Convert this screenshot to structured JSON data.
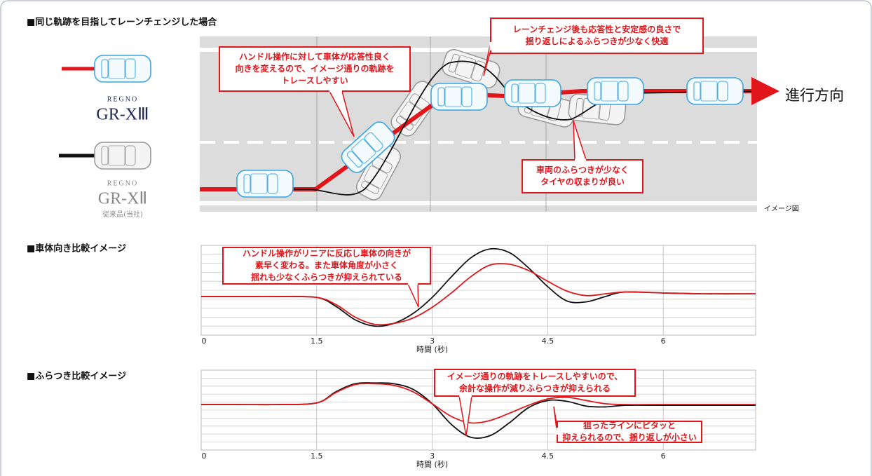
{
  "header": {
    "title": "■同じ軌跡を目指してレーンチェンジした場合"
  },
  "legend": [
    {
      "brand": "REGNO",
      "model": "GR-XⅢ"
    },
    {
      "brand": "REGNO",
      "model": "GR-XⅡ",
      "note": "従来品(当社)"
    }
  ],
  "diagram": {
    "callouts": [
      [
        "ハンドル操作に対して車体が応答性良く",
        "向きを変えるので、イメージ通りの軌跡を",
        "トレースしやすい"
      ],
      [
        "レーンチェンジ後も応答性と安定感の良さで",
        "揺り返しによるふらつきが少なく快適"
      ],
      [
        "車両のふらつきが少なく",
        "タイヤの収まりが良い"
      ]
    ],
    "direction": "進行方向",
    "caption": "イメージ図"
  },
  "chart_data": [
    {
      "type": "line",
      "title": "■車体向き比較イメージ",
      "x_label": "時間 (秒)",
      "xlim": [
        0,
        7.2
      ],
      "xticks": [
        0,
        1.5,
        3,
        4.5,
        6
      ],
      "ylim": [
        -5,
        5
      ],
      "grid": true,
      "x": [
        0,
        0.5,
        1,
        1.5,
        1.75,
        2,
        2.25,
        2.5,
        2.75,
        3,
        3.25,
        3.5,
        3.75,
        4,
        4.25,
        4.5,
        4.75,
        5,
        5.25,
        5.5,
        6,
        6.5,
        7.2
      ],
      "series": [
        {
          "color": "#111111",
          "values": [
            -0.7,
            -0.7,
            -0.7,
            -0.8,
            -1.8,
            -3.3,
            -4.0,
            -3.7,
            -2.6,
            -0.8,
            1.5,
            3.6,
            4.6,
            4.2,
            2.5,
            0.4,
            -1.2,
            -1.3,
            -0.7,
            -0.2,
            -0.3,
            -0.4,
            -0.4
          ]
        },
        {
          "color": "#e0161b",
          "values": [
            -0.7,
            -0.7,
            -0.7,
            -0.8,
            -1.6,
            -3.0,
            -3.8,
            -3.7,
            -3.1,
            -1.9,
            -0.3,
            1.5,
            2.8,
            2.9,
            2.2,
            1.0,
            -0.1,
            -0.6,
            -0.4,
            -0.2,
            -0.3,
            -0.4,
            -0.4
          ]
        }
      ],
      "annotations": [
        [
          "ハンドル操作がリニアに反応し車体の向きが",
          "素早く変わる。また車体角度が小さく",
          "揺れも少なくふらつきが抑えられている"
        ]
      ]
    },
    {
      "type": "line",
      "title": "■ふらつき比較イメージ",
      "x_label": "時間 (秒)",
      "xlim": [
        0,
        7.2
      ],
      "xticks": [
        0,
        1.5,
        3,
        4.5,
        6
      ],
      "ylim": [
        -5,
        5
      ],
      "grid": true,
      "x": [
        0,
        0.5,
        1,
        1.5,
        1.75,
        2,
        2.25,
        2.5,
        2.75,
        3,
        3.25,
        3.5,
        3.75,
        4,
        4.25,
        4.5,
        4.75,
        5,
        5.25,
        5.5,
        6,
        6.5,
        7.2
      ],
      "series": [
        {
          "color": "#111111",
          "values": [
            0.7,
            0.7,
            0.7,
            0.9,
            2.3,
            3.3,
            3.4,
            3.3,
            2.6,
            0.8,
            -1.8,
            -3.4,
            -3.2,
            -1.6,
            0.3,
            1.2,
            1.1,
            0.5,
            0.4,
            0.6,
            0.6,
            0.6,
            0.6
          ]
        },
        {
          "color": "#e0161b",
          "values": [
            0.7,
            0.7,
            0.7,
            0.9,
            2.2,
            3.2,
            3.3,
            3.1,
            2.3,
            0.8,
            -0.8,
            -1.6,
            -1.3,
            -0.4,
            0.6,
            1.4,
            1.6,
            1.2,
            0.8,
            0.7,
            0.7,
            0.7,
            0.7
          ]
        }
      ],
      "annotations": [
        [
          "イメージ通りの軌跡をトレースしやすいので、",
          "余計な操作が減りふらつきが抑えられる"
        ],
        [
          "狙ったラインにピタッと",
          "抑えられるので、揺り返しが小さい"
        ]
      ]
    }
  ]
}
